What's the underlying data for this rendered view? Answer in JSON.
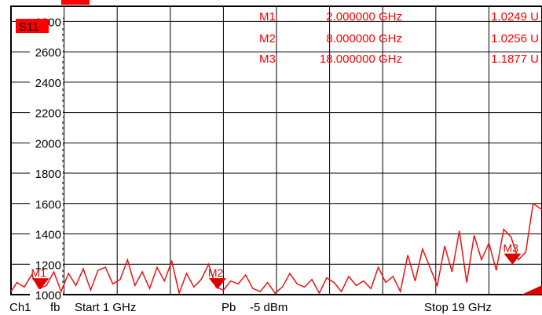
{
  "trace_label": "S11",
  "markers": [
    {
      "name": "M1",
      "freq": "2.000000 GHz",
      "value": "1.0249 U",
      "trace_label": "M1"
    },
    {
      "name": "M2",
      "freq": "8.000000 GHz",
      "value": "1.0256 U",
      "trace_label": "M2"
    },
    {
      "name": "M3",
      "freq": "18.000000 GHz",
      "value": "1.1877 U",
      "trace_label": "M3"
    }
  ],
  "footer": {
    "channel": "Ch1",
    "mode": "fb",
    "start": "Start 1 GHz",
    "power_label": "Pb",
    "power": "-5 dBm",
    "stop": "Stop 19 GHz"
  },
  "colors": {
    "trace": "#ee1111",
    "marker": "#dd0000",
    "grid": "#000000",
    "label_bg": "#ff0000"
  },
  "chart_data": {
    "type": "line",
    "title": "",
    "xlabel": "",
    "ylabel": "",
    "xlim": [
      1,
      19
    ],
    "ylim": [
      1000,
      2900
    ],
    "x_unit": "GHz",
    "grid": true,
    "y_ticks": [
      1000,
      1200,
      1400,
      1600,
      1800,
      2000,
      2200,
      2400,
      2600,
      2800
    ],
    "y_tick_labels": [
      "1000",
      "1200",
      "1400",
      "1600",
      "1800",
      "2000",
      "2200",
      "2400",
      "2600",
      "2800"
    ],
    "series": [
      {
        "x": [
          1.0,
          1.2,
          1.45,
          1.7,
          1.95,
          2.2,
          2.45,
          2.7,
          2.95,
          3.2,
          3.45,
          3.7,
          3.95,
          4.2,
          4.45,
          4.7,
          4.95,
          5.2,
          5.45,
          5.7,
          5.95,
          6.2,
          6.45,
          6.7,
          6.95,
          7.2,
          7.45,
          7.7,
          7.95,
          8.2,
          8.45,
          8.7,
          8.95,
          9.2,
          9.45,
          9.7,
          9.95,
          10.2,
          10.45,
          10.7,
          10.95,
          11.2,
          11.45,
          11.7,
          11.95,
          12.2,
          12.45,
          12.7,
          12.95,
          13.2,
          13.45,
          13.7,
          13.95,
          14.2,
          14.45,
          14.7,
          14.95,
          15.2,
          15.45,
          15.7,
          15.95,
          16.2,
          16.45,
          16.7,
          16.95,
          17.2,
          17.45,
          17.7,
          17.95,
          18.2,
          18.45,
          18.7,
          19.0
        ],
        "y": [
          1020,
          1080,
          1050,
          1130,
          1040,
          1060,
          1150,
          1020,
          1140,
          1060,
          1170,
          1030,
          1160,
          1180,
          1070,
          1100,
          1230,
          1060,
          1150,
          1040,
          1180,
          1090,
          1220,
          1010,
          1140,
          1050,
          1100,
          1200,
          1050,
          1030,
          1090,
          1070,
          1130,
          1040,
          1020,
          1080,
          1010,
          1050,
          1140,
          1070,
          1050,
          1100,
          1010,
          1110,
          1080,
          1020,
          1120,
          1060,
          1090,
          1040,
          1180,
          1080,
          1120,
          1020,
          1260,
          1090,
          1300,
          1180,
          1060,
          1320,
          1150,
          1420,
          1080,
          1390,
          1230,
          1340,
          1160,
          1430,
          1380,
          1230,
          1280,
          1600,
          1560
        ]
      }
    ],
    "markers": [
      {
        "name": "M1",
        "x": 2,
        "y": 1025
      },
      {
        "name": "M2",
        "x": 8,
        "y": 1026
      },
      {
        "name": "M3",
        "x": 18,
        "y": 1188
      }
    ]
  }
}
